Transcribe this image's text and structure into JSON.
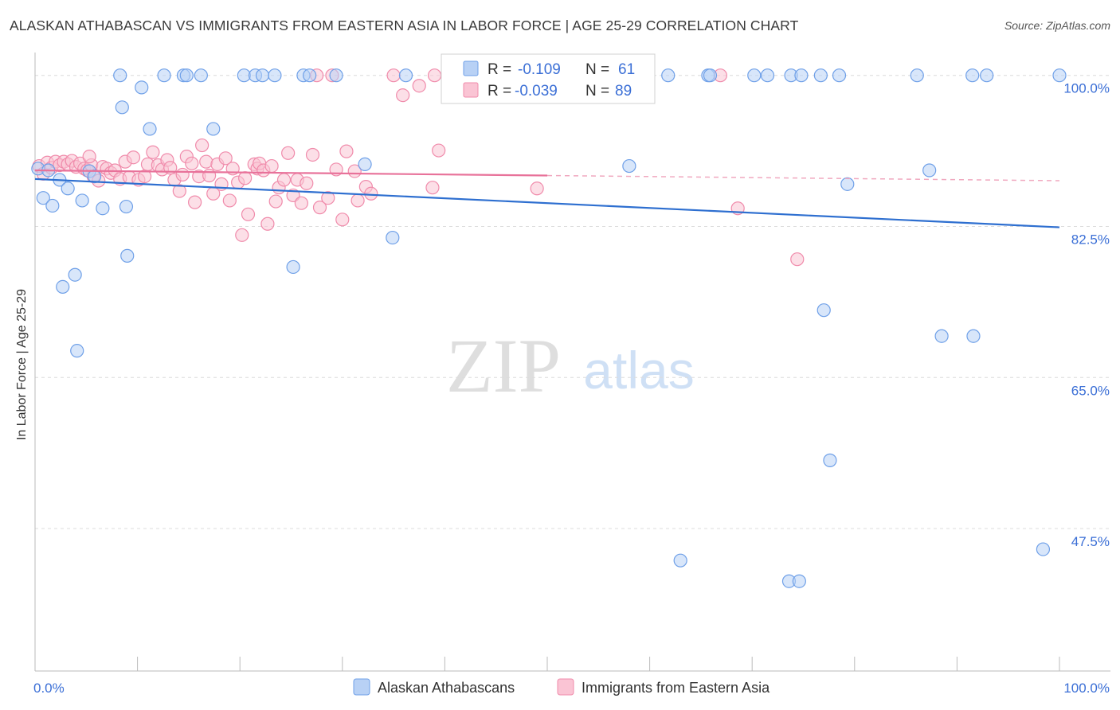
{
  "title": "ALASKAN ATHABASCAN VS IMMIGRANTS FROM EASTERN ASIA IN LABOR FORCE | AGE 25-29 CORRELATION CHART",
  "source": "Source: ZipAtlas.com",
  "watermark": {
    "zip": "ZIP",
    "atlas": "atlas"
  },
  "stats": {
    "r_label": "R =",
    "n_label": "N =",
    "rows": [
      {
        "r": "-0.109",
        "n": "61",
        "color": "#6fa0e8",
        "fill": "#b8d1f5"
      },
      {
        "r": "-0.039",
        "n": "89",
        "color": "#f08bab",
        "fill": "#fac4d4"
      }
    ]
  },
  "chart_data": {
    "type": "scatter",
    "title": "ALASKAN ATHABASCAN VS IMMIGRANTS FROM EASTERN ASIA IN LABOR FORCE | AGE 25-29 CORRELATION CHART",
    "xlabel": "",
    "ylabel": "In Labor Force | Age 25-29",
    "xlim": [
      0,
      100
    ],
    "ylim": [
      31,
      103.2
    ],
    "x_tick_labels": [
      "0.0%",
      "100.0%"
    ],
    "y_ticks": [
      47.5,
      65.0,
      82.5,
      100.0
    ],
    "y_tick_labels": [
      "47.5%",
      "65.0%",
      "82.5%",
      "100.0%"
    ],
    "legend_position": "bottom-center",
    "series": [
      {
        "name": "Alaskan Athabascans",
        "color": "#6fa0e8",
        "fill": "#b8d1f5",
        "trend": {
          "x": [
            0,
            100
          ],
          "y": [
            88.0,
            82.4
          ]
        },
        "points": [
          [
            0.3,
            89.2
          ],
          [
            0.8,
            85.8
          ],
          [
            1.3,
            89.0
          ],
          [
            1.7,
            84.9
          ],
          [
            2.4,
            87.9
          ],
          [
            3.2,
            86.9
          ],
          [
            2.7,
            75.5
          ],
          [
            3.9,
            76.9
          ],
          [
            4.6,
            85.5
          ],
          [
            4.1,
            68.1
          ],
          [
            5.3,
            88.9
          ],
          [
            5.8,
            88.3
          ],
          [
            6.6,
            84.6
          ],
          [
            8.9,
            84.8
          ],
          [
            9.0,
            79.1
          ],
          [
            8.3,
            100.0
          ],
          [
            8.5,
            96.3
          ],
          [
            10.4,
            98.6
          ],
          [
            11.2,
            93.8
          ],
          [
            12.6,
            100.0
          ],
          [
            14.5,
            100.0
          ],
          [
            14.8,
            100.0
          ],
          [
            16.2,
            100.0
          ],
          [
            17.4,
            93.8
          ],
          [
            20.4,
            100.0
          ],
          [
            21.5,
            100.0
          ],
          [
            22.2,
            100.0
          ],
          [
            23.4,
            100.0
          ],
          [
            25.2,
            77.8
          ],
          [
            26.2,
            100.0
          ],
          [
            26.8,
            100.0
          ],
          [
            29.4,
            100.0
          ],
          [
            32.2,
            89.7
          ],
          [
            34.9,
            81.2
          ],
          [
            36.2,
            100.0
          ],
          [
            53.5,
            100.0
          ],
          [
            57.0,
            100.0
          ],
          [
            58.0,
            89.5
          ],
          [
            61.8,
            100.0
          ],
          [
            63.0,
            43.8
          ],
          [
            65.7,
            100.0
          ],
          [
            65.9,
            100.0
          ],
          [
            70.2,
            100.0
          ],
          [
            71.5,
            100.0
          ],
          [
            73.6,
            41.4
          ],
          [
            74.6,
            41.4
          ],
          [
            73.8,
            100.0
          ],
          [
            74.8,
            100.0
          ],
          [
            76.7,
            100.0
          ],
          [
            77.0,
            72.8
          ],
          [
            77.6,
            55.4
          ],
          [
            78.5,
            100.0
          ],
          [
            79.3,
            87.4
          ],
          [
            86.1,
            100.0
          ],
          [
            87.3,
            89.0
          ],
          [
            88.5,
            69.8
          ],
          [
            91.5,
            100.0
          ],
          [
            91.6,
            69.8
          ],
          [
            92.9,
            100.0
          ],
          [
            98.4,
            45.1
          ],
          [
            100.0,
            100.0
          ]
        ]
      },
      {
        "name": "Immigrants from Eastern Asia",
        "color": "#f08bab",
        "fill": "#fac4d4",
        "trend": {
          "x": [
            0,
            100
          ],
          "y": [
            89.0,
            87.8
          ]
        },
        "points": [
          [
            0.4,
            89.5
          ],
          [
            0.8,
            88.6
          ],
          [
            1.2,
            89.9
          ],
          [
            1.6,
            89.3
          ],
          [
            2.0,
            90.0
          ],
          [
            2.4,
            89.6
          ],
          [
            2.8,
            90.0
          ],
          [
            3.2,
            89.7
          ],
          [
            3.6,
            90.1
          ],
          [
            4.0,
            89.4
          ],
          [
            4.4,
            89.8
          ],
          [
            4.8,
            89.2
          ],
          [
            5.1,
            89.0
          ],
          [
            5.5,
            89.6
          ],
          [
            5.3,
            90.6
          ],
          [
            5.7,
            88.3
          ],
          [
            6.2,
            87.8
          ],
          [
            6.6,
            89.4
          ],
          [
            7.0,
            89.2
          ],
          [
            7.4,
            88.7
          ],
          [
            7.8,
            89.0
          ],
          [
            8.3,
            88.0
          ],
          [
            8.8,
            90.0
          ],
          [
            9.2,
            88.2
          ],
          [
            9.6,
            90.5
          ],
          [
            10.1,
            87.9
          ],
          [
            10.7,
            88.3
          ],
          [
            11.0,
            89.7
          ],
          [
            11.5,
            91.1
          ],
          [
            12.0,
            89.6
          ],
          [
            12.4,
            89.1
          ],
          [
            12.9,
            90.2
          ],
          [
            13.2,
            89.3
          ],
          [
            13.6,
            87.9
          ],
          [
            14.1,
            86.6
          ],
          [
            14.4,
            88.5
          ],
          [
            14.8,
            90.6
          ],
          [
            15.3,
            89.8
          ],
          [
            15.6,
            85.3
          ],
          [
            16.0,
            88.3
          ],
          [
            16.3,
            91.9
          ],
          [
            16.7,
            90.0
          ],
          [
            17.0,
            88.4
          ],
          [
            17.4,
            86.3
          ],
          [
            17.8,
            89.7
          ],
          [
            18.2,
            87.4
          ],
          [
            18.6,
            90.4
          ],
          [
            19.0,
            85.5
          ],
          [
            19.3,
            89.2
          ],
          [
            19.8,
            87.6
          ],
          [
            20.2,
            81.5
          ],
          [
            20.5,
            88.1
          ],
          [
            20.8,
            83.9
          ],
          [
            21.4,
            89.7
          ],
          [
            21.7,
            89.2
          ],
          [
            21.9,
            89.8
          ],
          [
            22.3,
            89.0
          ],
          [
            22.7,
            82.8
          ],
          [
            23.1,
            89.5
          ],
          [
            23.5,
            85.4
          ],
          [
            23.8,
            87.0
          ],
          [
            24.3,
            87.9
          ],
          [
            24.7,
            91.0
          ],
          [
            25.2,
            86.1
          ],
          [
            25.6,
            87.9
          ],
          [
            26.0,
            85.2
          ],
          [
            26.5,
            87.5
          ],
          [
            27.1,
            90.8
          ],
          [
            27.5,
            100.0
          ],
          [
            27.8,
            84.7
          ],
          [
            28.6,
            85.8
          ],
          [
            29.0,
            100.0
          ],
          [
            29.4,
            89.1
          ],
          [
            30.0,
            83.3
          ],
          [
            30.4,
            91.2
          ],
          [
            31.2,
            88.9
          ],
          [
            31.5,
            85.5
          ],
          [
            32.3,
            87.1
          ],
          [
            32.8,
            86.3
          ],
          [
            35.0,
            100.0
          ],
          [
            35.9,
            97.7
          ],
          [
            37.5,
            98.8
          ],
          [
            39.0,
            100.0
          ],
          [
            39.4,
            91.3
          ],
          [
            38.8,
            87.0
          ],
          [
            49.0,
            86.9
          ],
          [
            66.9,
            100.0
          ],
          [
            68.6,
            84.6
          ],
          [
            74.4,
            78.7
          ]
        ]
      }
    ]
  },
  "legend": {
    "items": [
      "Alaskan Athabascans",
      "Immigrants from Eastern Asia"
    ]
  }
}
